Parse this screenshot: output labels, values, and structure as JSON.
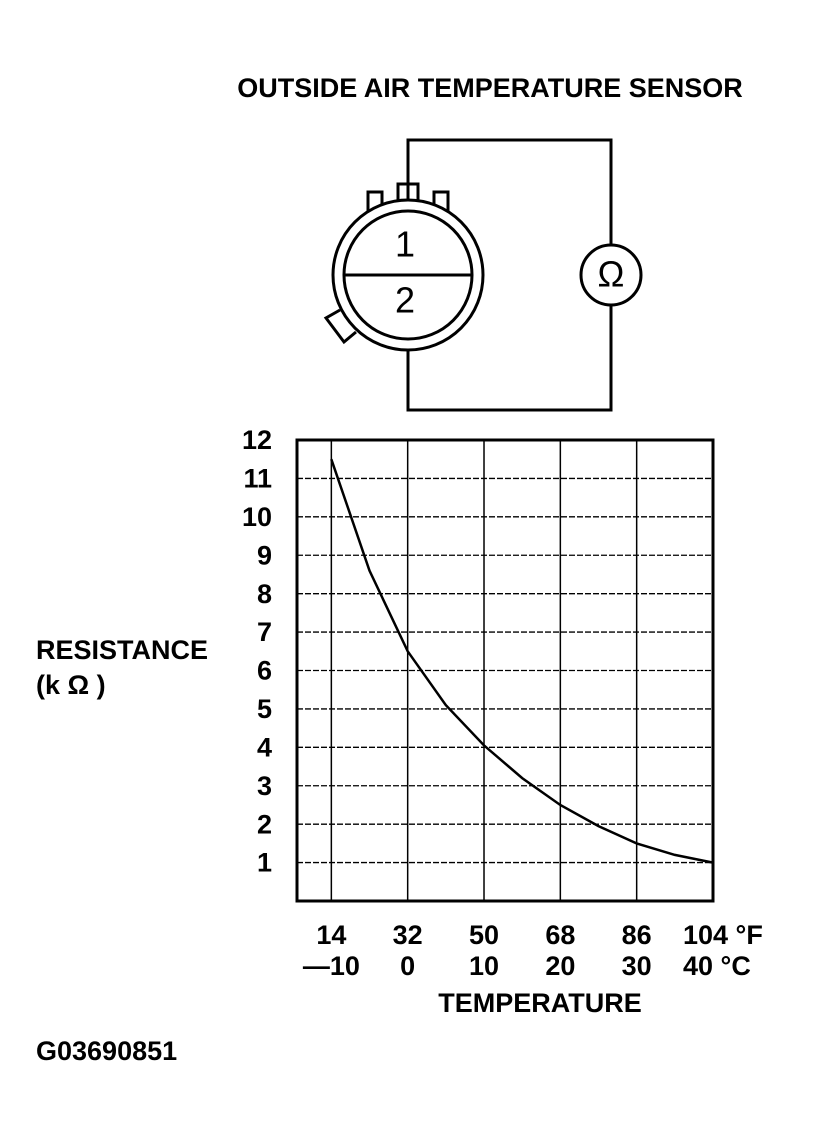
{
  "chart_data": {
    "type": "line",
    "title": "OUTSIDE AIR TEMPERATURE SENSOR",
    "diagram": {
      "pins": [
        "1",
        "2"
      ],
      "meter": "Ω"
    },
    "ylabel": [
      "RESISTANCE",
      "(k Ω )"
    ],
    "xlabel": "TEMPERATURE",
    "figure_code": "G03690851",
    "x": [
      -10,
      -5,
      0,
      5,
      10,
      15,
      20,
      25,
      30,
      35,
      40
    ],
    "values": [
      11.5,
      8.6,
      6.5,
      5.1,
      4.05,
      3.2,
      2.5,
      1.95,
      1.5,
      1.2,
      1.0
    ],
    "color": "#000000",
    "xlim": [
      -14.5,
      40
    ],
    "xticks": [
      {
        "value": -10,
        "label": "—10"
      },
      0,
      10,
      20,
      30,
      {
        "value": 40,
        "label": "40 °C"
      }
    ],
    "x2lim": [
      5.9,
      104
    ],
    "x2ticks": [
      14,
      32,
      50,
      68,
      86,
      {
        "value": 104,
        "label": "104 °F"
      }
    ],
    "ylim": [
      0,
      12
    ],
    "yticks": [
      1,
      2,
      3,
      4,
      5,
      6,
      7,
      8,
      9,
      10,
      11,
      12
    ],
    "grid": true
  }
}
